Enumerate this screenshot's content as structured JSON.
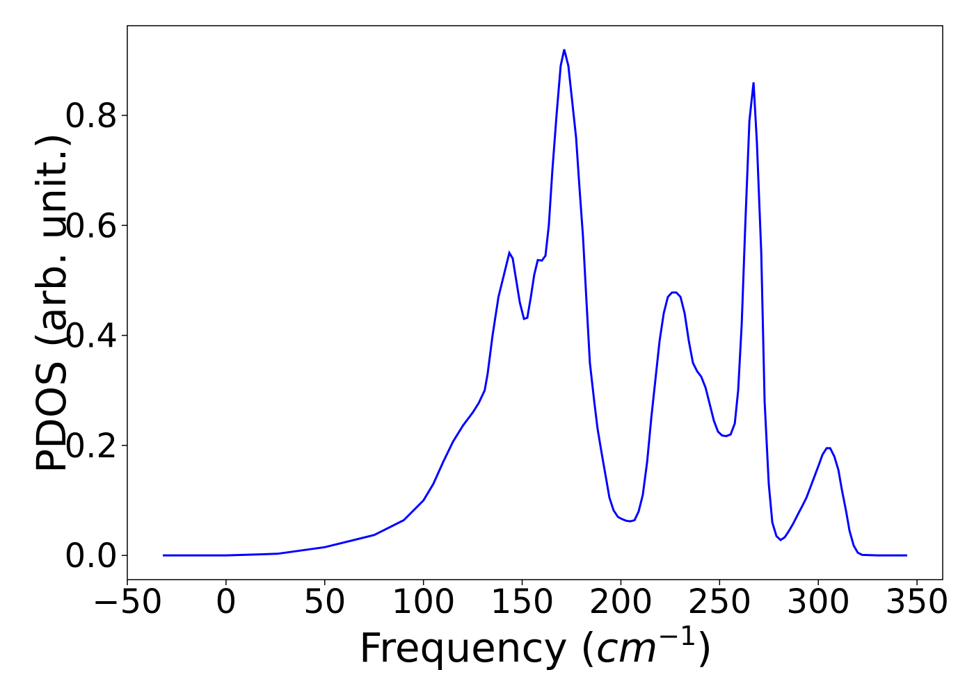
{
  "chart_data": {
    "type": "line",
    "x_label": [
      "Frequency (",
      "cm",
      "−1",
      ")"
    ],
    "y_label": "PDOS (arb. unit.)",
    "xlim": [
      -50,
      363
    ],
    "ylim": [
      -0.044,
      0.963
    ],
    "xticks": [
      {
        "value": -50,
        "label": "−50"
      },
      0,
      50,
      100,
      150,
      200,
      250,
      300,
      350
    ],
    "yticks": [
      {
        "value": 0,
        "label": "0.0"
      },
      0.2,
      0.4,
      0.6,
      0.8
    ],
    "grid": false,
    "series": [
      {
        "color": "#0000ff",
        "x": [
          -32,
          -10,
          0,
          26,
          50,
          75,
          90,
          100,
          105,
          110,
          115,
          120,
          125,
          128,
          131,
          132.5,
          135,
          138,
          143.5,
          145.2,
          147.0,
          148.8,
          150.9,
          152.6,
          154.4,
          156.1,
          157.9,
          160.0,
          161.8,
          163.5,
          165.3,
          167.4,
          169.5,
          171.3,
          173.4,
          175.2,
          177.3,
          179.0,
          180.8,
          182.6,
          184.3,
          186.5,
          188.2,
          190.3,
          192.5,
          194.2,
          196.3,
          198.5,
          200.6,
          202.7,
          204.8,
          206.9,
          209.0,
          211.1,
          213.3,
          215.4,
          217.5,
          219.6,
          221.7,
          223.8,
          225.9,
          228.1,
          230.2,
          232.3,
          234.4,
          236.5,
          238.6,
          240.7,
          242.9,
          245.0,
          247.1,
          249.2,
          251.3,
          253.4,
          255.6,
          257.7,
          259.4,
          261.2,
          263.0,
          265.1,
          267.2,
          268.9,
          271.1,
          272.8,
          274.9,
          276.7,
          278.8,
          280.9,
          283.0,
          285.2,
          287.3,
          289.7,
          291.9,
          294.0,
          296.1,
          298.2,
          300.3,
          302.1,
          304.2,
          306.0,
          308.1,
          310.2,
          311.9,
          314.1,
          315.8,
          317.9,
          320.0,
          322.2,
          330,
          345
        ],
        "values": [
          0,
          0,
          0,
          0.003,
          0.015,
          0.037,
          0.064,
          0.1,
          0.13,
          0.17,
          0.207,
          0.236,
          0.26,
          0.277,
          0.3,
          0.33,
          0.4,
          0.47,
          0.55,
          0.54,
          0.5,
          0.46,
          0.43,
          0.432,
          0.47,
          0.51,
          0.537,
          0.536,
          0.545,
          0.6,
          0.7,
          0.8,
          0.89,
          0.92,
          0.89,
          0.83,
          0.76,
          0.67,
          0.58,
          0.46,
          0.35,
          0.28,
          0.23,
          0.185,
          0.14,
          0.105,
          0.082,
          0.07,
          0.066,
          0.063,
          0.062,
          0.064,
          0.08,
          0.11,
          0.17,
          0.25,
          0.32,
          0.39,
          0.44,
          0.47,
          0.478,
          0.478,
          0.47,
          0.44,
          0.39,
          0.35,
          0.335,
          0.325,
          0.305,
          0.275,
          0.245,
          0.225,
          0.218,
          0.217,
          0.22,
          0.24,
          0.3,
          0.42,
          0.6,
          0.79,
          0.86,
          0.75,
          0.55,
          0.28,
          0.13,
          0.06,
          0.035,
          0.028,
          0.033,
          0.045,
          0.058,
          0.075,
          0.09,
          0.105,
          0.125,
          0.145,
          0.165,
          0.183,
          0.195,
          0.195,
          0.18,
          0.155,
          0.12,
          0.08,
          0.045,
          0.018,
          0.005,
          0.001,
          0,
          0
        ]
      }
    ]
  }
}
